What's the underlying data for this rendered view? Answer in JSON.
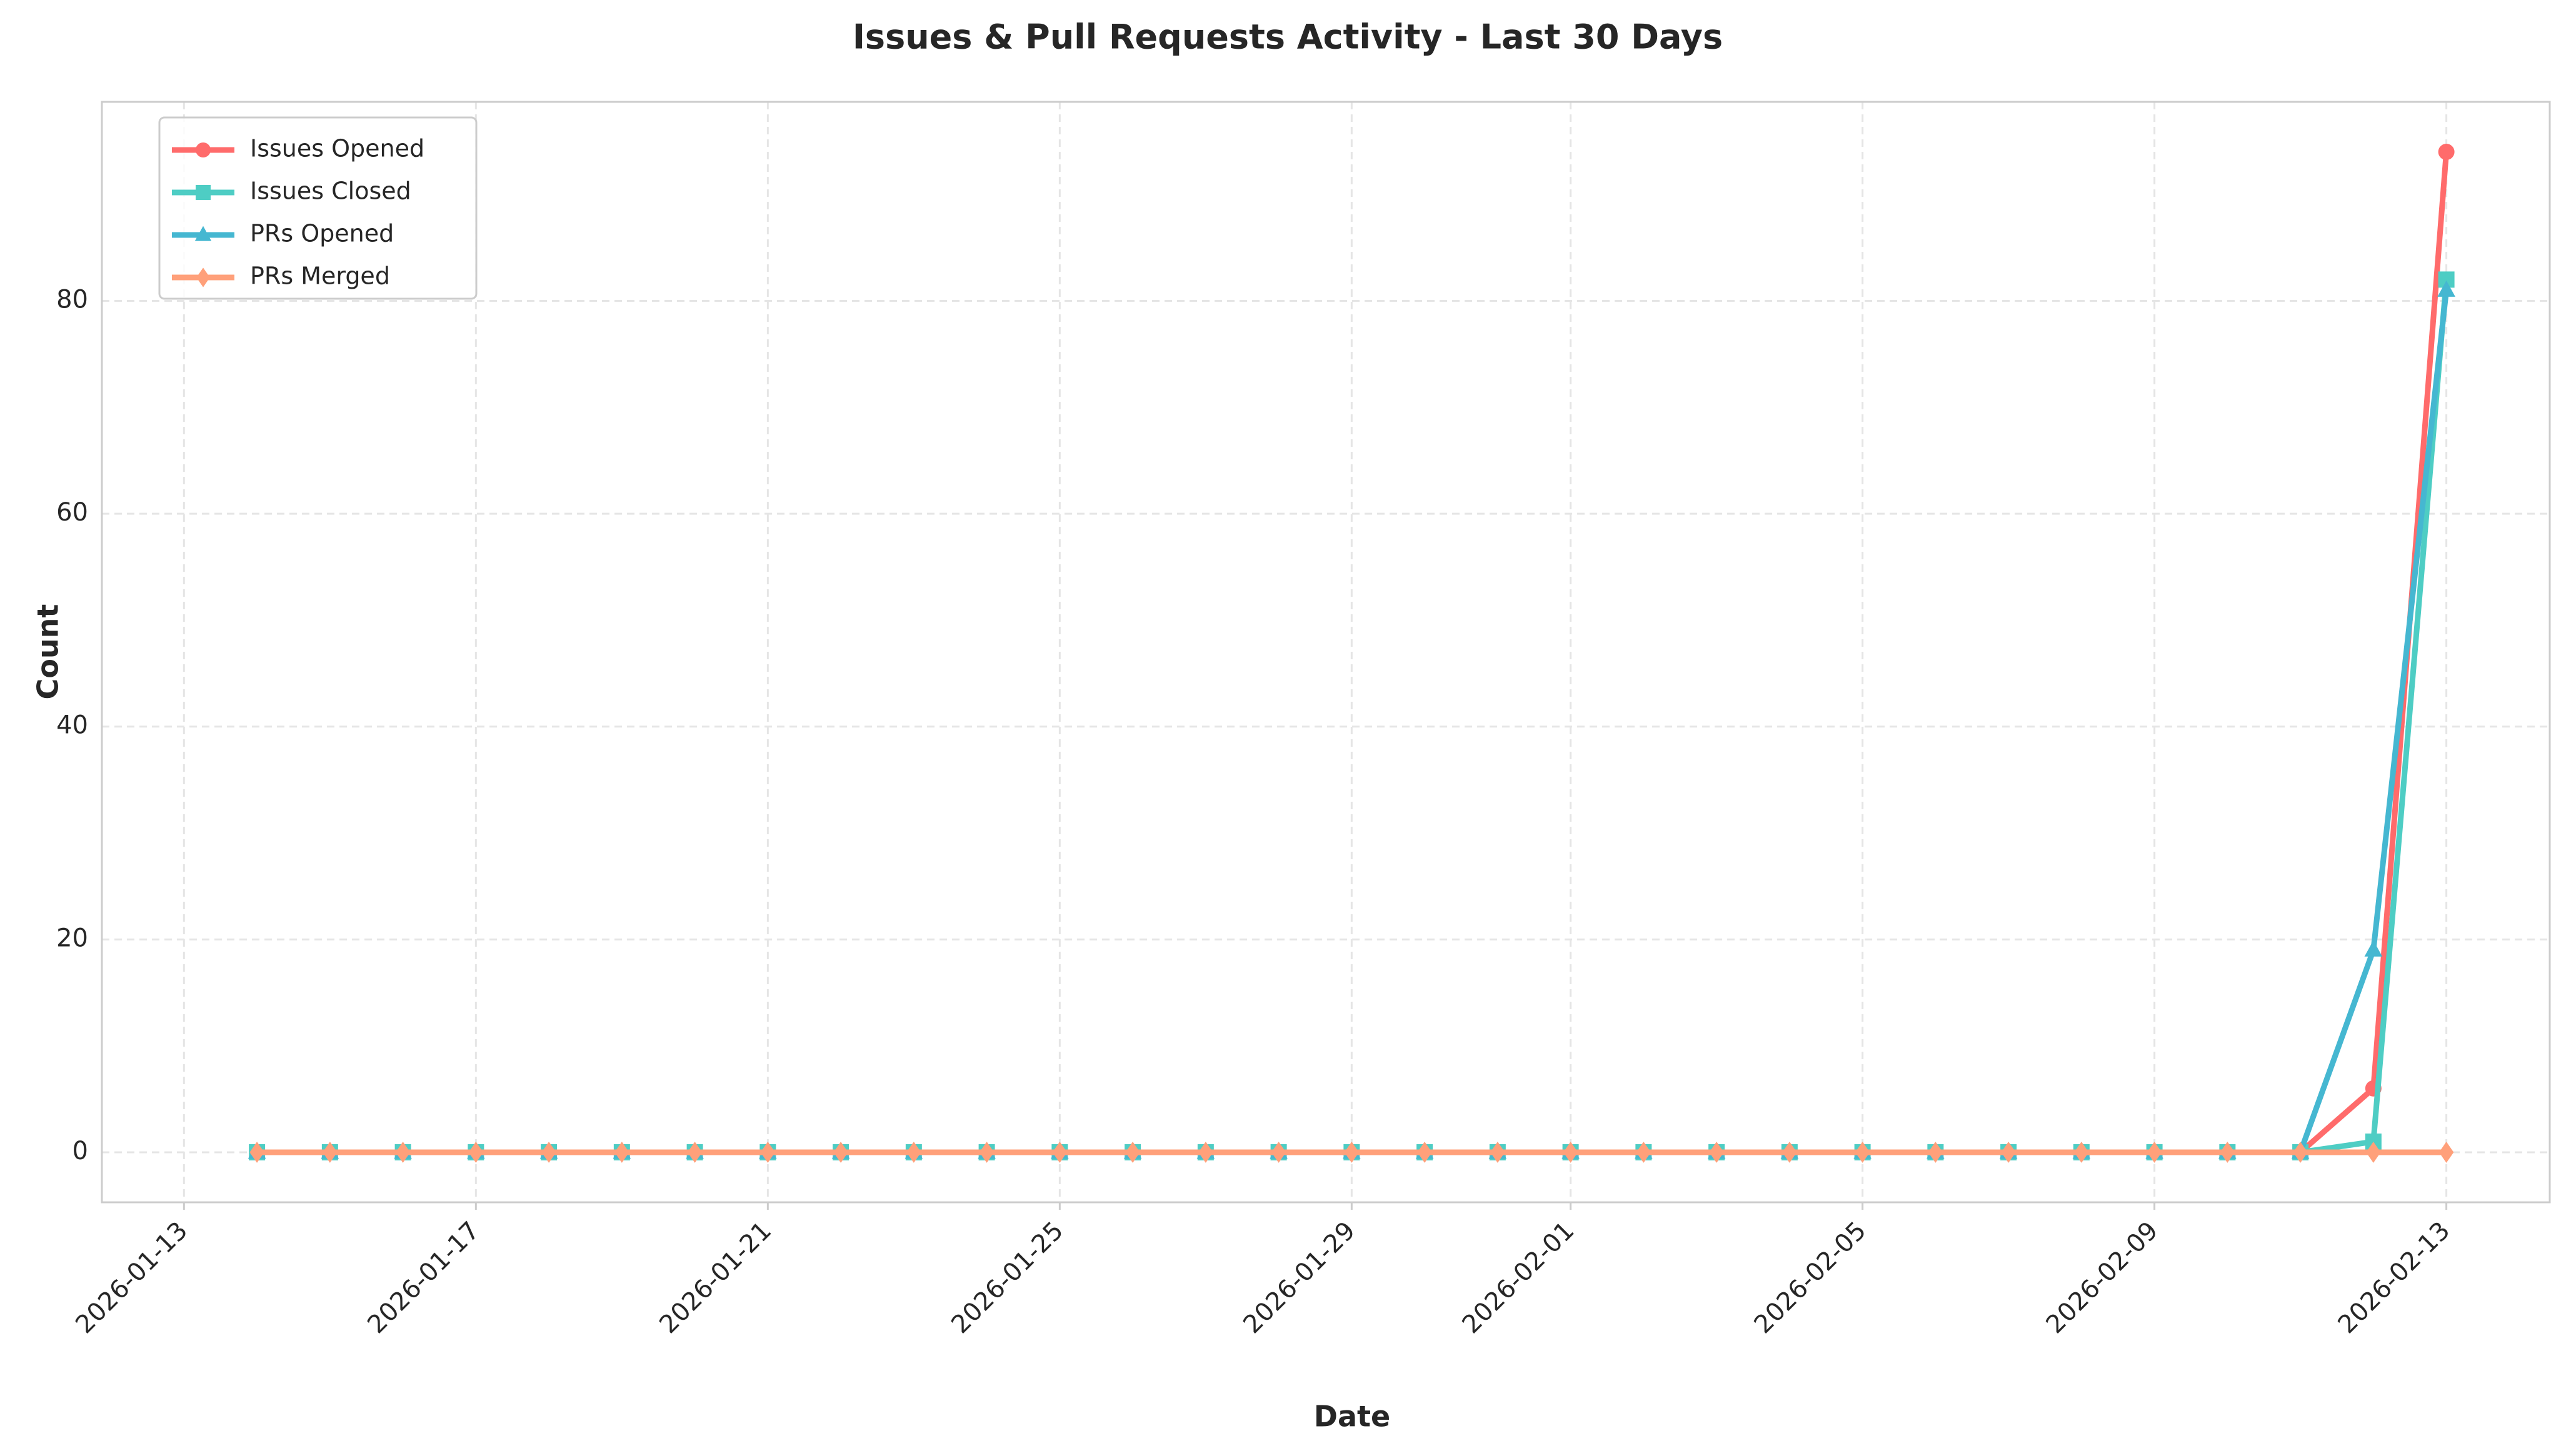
{
  "chart_data": {
    "type": "line",
    "title": "Issues & Pull Requests Activity - Last 30 Days",
    "x_label": "Date",
    "y_label": "Count",
    "x": [
      "2026-01-14",
      "2026-01-15",
      "2026-01-16",
      "2026-01-17",
      "2026-01-18",
      "2026-01-19",
      "2026-01-20",
      "2026-01-21",
      "2026-01-22",
      "2026-01-23",
      "2026-01-24",
      "2026-01-25",
      "2026-01-26",
      "2026-01-27",
      "2026-01-28",
      "2026-01-29",
      "2026-01-30",
      "2026-01-31",
      "2026-02-01",
      "2026-02-02",
      "2026-02-03",
      "2026-02-04",
      "2026-02-05",
      "2026-02-06",
      "2026-02-07",
      "2026-02-08",
      "2026-02-09",
      "2026-02-10",
      "2026-02-11",
      "2026-02-12",
      "2026-02-13"
    ],
    "series": [
      {
        "name": "Issues Opened",
        "color": "#FF6B6B",
        "marker": "circle",
        "values": [
          0,
          0,
          0,
          0,
          0,
          0,
          0,
          0,
          0,
          0,
          0,
          0,
          0,
          0,
          0,
          0,
          0,
          0,
          0,
          0,
          0,
          0,
          0,
          0,
          0,
          0,
          0,
          0,
          0,
          6,
          94
        ]
      },
      {
        "name": "Issues Closed",
        "color": "#4ECDC4",
        "marker": "square",
        "values": [
          0,
          0,
          0,
          0,
          0,
          0,
          0,
          0,
          0,
          0,
          0,
          0,
          0,
          0,
          0,
          0,
          0,
          0,
          0,
          0,
          0,
          0,
          0,
          0,
          0,
          0,
          0,
          0,
          0,
          1,
          82
        ]
      },
      {
        "name": "PRs Opened",
        "color": "#45B7D1",
        "marker": "triangle",
        "values": [
          0,
          0,
          0,
          0,
          0,
          0,
          0,
          0,
          0,
          0,
          0,
          0,
          0,
          0,
          0,
          0,
          0,
          0,
          0,
          0,
          0,
          0,
          0,
          0,
          0,
          0,
          0,
          0,
          0,
          19,
          81
        ]
      },
      {
        "name": "PRs Merged",
        "color": "#FFA07A",
        "marker": "diamond",
        "values": [
          0,
          0,
          0,
          0,
          0,
          0,
          0,
          0,
          0,
          0,
          0,
          0,
          0,
          0,
          0,
          0,
          0,
          0,
          0,
          0,
          0,
          0,
          0,
          0,
          0,
          0,
          0,
          0,
          0,
          0,
          0
        ]
      }
    ],
    "xlim": [
      "2026-01-11T21:00",
      "2026-02-14T10:00"
    ],
    "xticks": [
      "2026-01-13",
      "2026-01-17",
      "2026-01-21",
      "2026-01-25",
      "2026-01-29",
      "2026-02-01",
      "2026-02-05",
      "2026-02-09",
      "2026-02-13"
    ],
    "ylim": [
      -4.7,
      98.7
    ],
    "yticks": [
      0,
      20,
      40,
      60,
      80
    ],
    "grid": true,
    "legend": "upper left"
  }
}
